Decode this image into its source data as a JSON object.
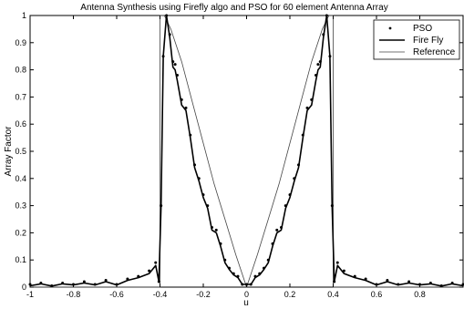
{
  "chart_data": {
    "type": "line",
    "title": "Antenna Synthesis using Firefly algo and PSO for 60 element Antenna Array",
    "xlabel": "u",
    "ylabel": "Array Factor",
    "xlim": [
      -1,
      1
    ],
    "ylim": [
      0,
      1
    ],
    "xticks": [
      -1,
      -0.8,
      -0.6,
      -0.4,
      -0.2,
      0,
      0.2,
      0.4,
      0.6,
      0.8
    ],
    "xtick_labels": [
      "-1",
      "-0.8",
      "-0.6",
      "-0.4",
      "-0.2",
      "0",
      "0.2",
      "0.4",
      "0.6",
      "0.8"
    ],
    "yticks": [
      0,
      0.1,
      0.2,
      0.3,
      0.4,
      0.5,
      0.6,
      0.7,
      0.8,
      0.9,
      1
    ],
    "ytick_labels": [
      "0",
      "0.1",
      "0.2",
      "0.3",
      "0.4",
      "0.5",
      "0.6",
      "0.7",
      "0.8",
      "0.9",
      "1"
    ],
    "grid": false,
    "legend_position": "top-right",
    "series": [
      {
        "name": "PSO",
        "style": "dots",
        "color": "#000000",
        "x": [
          -1,
          -0.95,
          -0.9,
          -0.85,
          -0.8,
          -0.75,
          -0.7,
          -0.65,
          -0.6,
          -0.55,
          -0.5,
          -0.45,
          -0.42,
          -0.405,
          -0.395,
          -0.385,
          -0.37,
          -0.355,
          -0.34,
          -0.33,
          -0.32,
          -0.3,
          -0.28,
          -0.26,
          -0.24,
          -0.22,
          -0.2,
          -0.18,
          -0.16,
          -0.14,
          -0.12,
          -0.1,
          -0.08,
          -0.06,
          -0.04,
          -0.02,
          0,
          0.02,
          0.04,
          0.06,
          0.08,
          0.1,
          0.12,
          0.14,
          0.16,
          0.18,
          0.2,
          0.22,
          0.24,
          0.26,
          0.28,
          0.3,
          0.32,
          0.33,
          0.34,
          0.355,
          0.37,
          0.385,
          0.395,
          0.405,
          0.42,
          0.45,
          0.5,
          0.55,
          0.6,
          0.65,
          0.7,
          0.75,
          0.8,
          0.85,
          0.9,
          0.95,
          1
        ],
        "y": [
          0.01,
          0.015,
          0.005,
          0.015,
          0.01,
          0.02,
          0.01,
          0.025,
          0.01,
          0.03,
          0.04,
          0.06,
          0.09,
          0.02,
          0.3,
          0.85,
          1,
          0.93,
          0.83,
          0.82,
          0.78,
          0.69,
          0.66,
          0.56,
          0.45,
          0.4,
          0.34,
          0.3,
          0.22,
          0.21,
          0.16,
          0.1,
          0.07,
          0.05,
          0.04,
          0.01,
          0.01,
          0.01,
          0.04,
          0.05,
          0.07,
          0.1,
          0.16,
          0.21,
          0.22,
          0.3,
          0.34,
          0.4,
          0.45,
          0.56,
          0.66,
          0.69,
          0.78,
          0.82,
          0.83,
          0.93,
          1,
          0.85,
          0.3,
          0.02,
          0.09,
          0.06,
          0.04,
          0.03,
          0.01,
          0.025,
          0.01,
          0.02,
          0.01,
          0.015,
          0.005,
          0.015,
          0.01
        ]
      },
      {
        "name": "Fire Fly",
        "style": "solid-thick",
        "color": "#000000",
        "x": [
          -1,
          -0.95,
          -0.9,
          -0.85,
          -0.8,
          -0.75,
          -0.7,
          -0.65,
          -0.6,
          -0.55,
          -0.5,
          -0.45,
          -0.42,
          -0.405,
          -0.395,
          -0.385,
          -0.37,
          -0.355,
          -0.34,
          -0.33,
          -0.32,
          -0.3,
          -0.28,
          -0.26,
          -0.24,
          -0.22,
          -0.2,
          -0.18,
          -0.16,
          -0.14,
          -0.12,
          -0.1,
          -0.08,
          -0.06,
          -0.04,
          -0.02,
          0,
          0.02,
          0.04,
          0.06,
          0.08,
          0.1,
          0.12,
          0.14,
          0.16,
          0.18,
          0.2,
          0.22,
          0.24,
          0.26,
          0.28,
          0.3,
          0.32,
          0.33,
          0.34,
          0.355,
          0.37,
          0.385,
          0.395,
          0.405,
          0.42,
          0.45,
          0.5,
          0.55,
          0.6,
          0.65,
          0.7,
          0.75,
          0.8,
          0.85,
          0.9,
          0.95,
          1
        ],
        "y": [
          0.005,
          0.012,
          0.004,
          0.012,
          0.008,
          0.015,
          0.008,
          0.02,
          0.008,
          0.025,
          0.035,
          0.05,
          0.08,
          0.02,
          0.3,
          0.85,
          1,
          0.92,
          0.81,
          0.8,
          0.76,
          0.67,
          0.65,
          0.55,
          0.44,
          0.39,
          0.33,
          0.29,
          0.21,
          0.2,
          0.15,
          0.09,
          0.065,
          0.045,
          0.035,
          0.01,
          0.01,
          0.01,
          0.035,
          0.045,
          0.065,
          0.09,
          0.15,
          0.2,
          0.21,
          0.29,
          0.33,
          0.39,
          0.44,
          0.55,
          0.65,
          0.67,
          0.76,
          0.8,
          0.81,
          0.92,
          1,
          0.85,
          0.3,
          0.02,
          0.08,
          0.05,
          0.035,
          0.025,
          0.008,
          0.02,
          0.008,
          0.015,
          0.008,
          0.012,
          0.004,
          0.012,
          0.005
        ]
      },
      {
        "name": "Reference",
        "style": "solid-thin",
        "color": "#000000",
        "x": [
          -1,
          -0.4,
          -0.4,
          -0.38,
          -0.35,
          -0.3,
          -0.25,
          -0.2,
          -0.15,
          -0.1,
          -0.05,
          0,
          0.05,
          0.1,
          0.15,
          0.2,
          0.25,
          0.3,
          0.35,
          0.38,
          0.4,
          0.4,
          1
        ],
        "y": [
          0,
          0,
          1,
          1,
          0.95,
          0.83,
          0.68,
          0.53,
          0.38,
          0.25,
          0.12,
          0,
          0.12,
          0.25,
          0.38,
          0.53,
          0.68,
          0.83,
          0.95,
          1,
          1,
          0,
          0
        ]
      }
    ]
  }
}
